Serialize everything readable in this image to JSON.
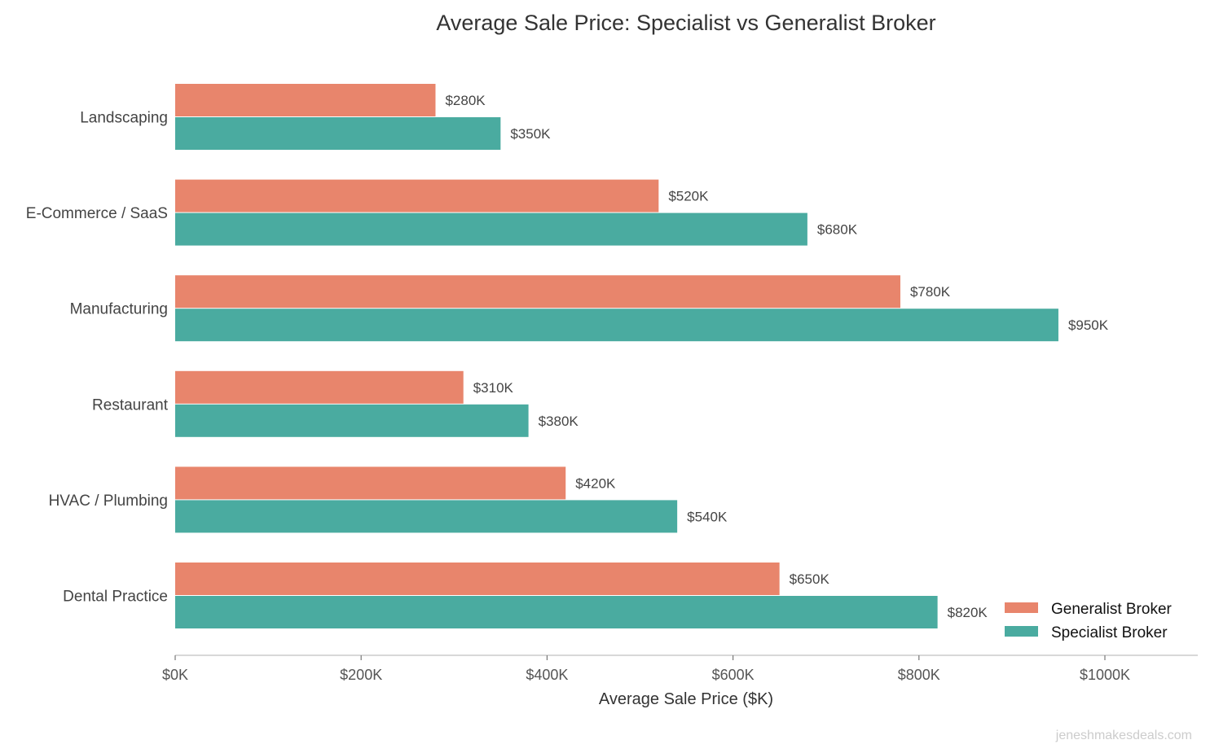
{
  "chart_data": {
    "type": "bar",
    "orientation": "horizontal",
    "title": "Average Sale Price: Specialist vs Generalist Broker",
    "xlabel": "Average Sale Price ($K)",
    "ylabel": "",
    "categories": [
      "Landscaping",
      "E-Commerce / SaaS",
      "Manufacturing",
      "Restaurant",
      "HVAC / Plumbing",
      "Dental Practice"
    ],
    "series": [
      {
        "name": "Generalist Broker",
        "color": "#E8856C",
        "values": [
          280,
          520,
          780,
          310,
          420,
          650
        ],
        "labels": [
          "$280K",
          "$520K",
          "$780K",
          "$310K",
          "$420K",
          "$650K"
        ]
      },
      {
        "name": "Specialist Broker",
        "color": "#4AABA0",
        "values": [
          350,
          680,
          950,
          380,
          540,
          820
        ],
        "labels": [
          "$350K",
          "$680K",
          "$950K",
          "$380K",
          "$540K",
          "$820K"
        ]
      }
    ],
    "xlim": [
      0,
      1100
    ],
    "xticks": [
      0,
      200,
      400,
      600,
      800,
      1000
    ],
    "xtick_labels": [
      "$0K",
      "$200K",
      "$400K",
      "$600K",
      "$800K",
      "$1000K"
    ],
    "grid": false,
    "legend_position": "bottom-right"
  },
  "watermark": "jeneshmakesdeals.com"
}
